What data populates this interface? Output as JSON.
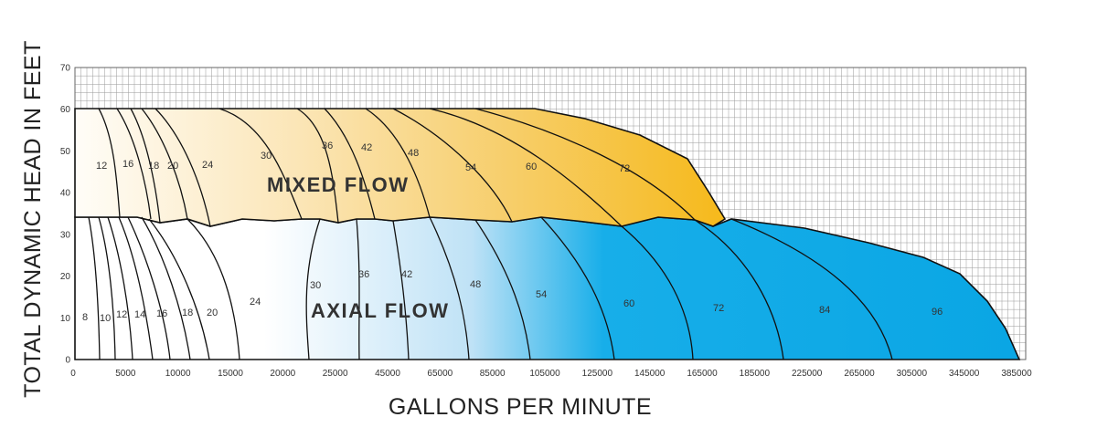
{
  "chart_data": {
    "type": "area",
    "ylabel": "TOTAL DYNAMIC HEAD IN FEET",
    "xlabel": "GALLONS PER MINUTE",
    "ylim": [
      0,
      70
    ],
    "yticks": [
      "0",
      "10",
      "20",
      "30",
      "40",
      "50",
      "60",
      "70"
    ],
    "xtick_labels": [
      "0",
      "5000",
      "10000",
      "15000",
      "20000",
      "25000",
      "45000",
      "65000",
      "85000",
      "105000",
      "125000",
      "145000",
      "165000",
      "185000",
      "225000",
      "265000",
      "305000",
      "345000",
      "385000"
    ],
    "grid": true,
    "regions": [
      {
        "name": "MIXED FLOW",
        "head_range": [
          34,
          60
        ],
        "max_gpm": 165000,
        "pump_sizes": [
          "12",
          "16",
          "18",
          "20",
          "24",
          "30",
          "36",
          "42",
          "48",
          "54",
          "60",
          "72"
        ]
      },
      {
        "name": "AXIAL FLOW",
        "head_range": [
          0,
          34
        ],
        "max_gpm": 385000,
        "pump_sizes": [
          "8",
          "10",
          "12",
          "14",
          "16",
          "18",
          "20",
          "24",
          "30",
          "36",
          "42",
          "48",
          "54",
          "60",
          "72",
          "84",
          "96"
        ]
      }
    ],
    "colors": {
      "mixed_gradient": [
        "#fffdf8",
        "#fbe5b5",
        "#f7cf6e",
        "#f6b91a"
      ],
      "axial_gradient": [
        "#ffffff",
        "#bfe2f6",
        "#17aee9",
        "#0aa6e4"
      ],
      "outline": "#111111",
      "grid": "#9a9a9a"
    }
  }
}
